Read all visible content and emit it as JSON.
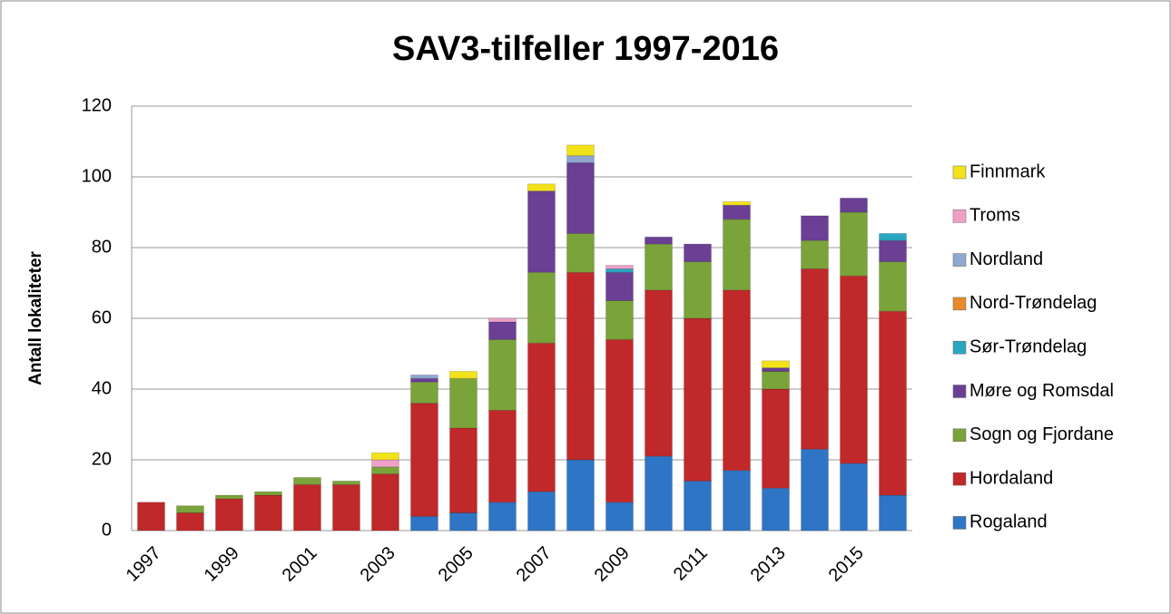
{
  "chart_data": {
    "type": "bar",
    "stacked": true,
    "title": "SAV3-tilfeller 1997-2016",
    "y_label": "Antall lokaliteter",
    "categories": [
      "1997",
      null,
      "1999",
      null,
      "2001",
      null,
      "2003",
      null,
      "2005",
      null,
      "2007",
      null,
      "2009",
      null,
      "2011",
      null,
      "2013",
      null,
      "2015",
      null
    ],
    "series": [
      {
        "name": "Rogaland",
        "color": "#2e75c6",
        "values": [
          0,
          0,
          0,
          0,
          0,
          0,
          0,
          4,
          5,
          8,
          11,
          20,
          8,
          21,
          14,
          17,
          12,
          23,
          19,
          10
        ]
      },
      {
        "name": "Hordaland",
        "color": "#c0282a",
        "values": [
          8,
          5,
          9,
          10,
          13,
          13,
          16,
          32,
          24,
          26,
          42,
          53,
          46,
          47,
          46,
          51,
          28,
          51,
          53,
          52
        ]
      },
      {
        "name": "Sogn og Fjordane",
        "color": "#7aa33a",
        "values": [
          0,
          2,
          1,
          1,
          2,
          1,
          2,
          6,
          14,
          20,
          20,
          11,
          11,
          13,
          16,
          20,
          5,
          8,
          18,
          14
        ]
      },
      {
        "name": "Møre og Romsdal",
        "color": "#6a3f94",
        "values": [
          0,
          0,
          0,
          0,
          0,
          0,
          0,
          1,
          0,
          5,
          23,
          20,
          8,
          2,
          5,
          4,
          1,
          7,
          4,
          6
        ]
      },
      {
        "name": "Sør-Trøndelag",
        "color": "#2aa6c0",
        "values": [
          0,
          0,
          0,
          0,
          0,
          0,
          0,
          0,
          0,
          0,
          0,
          0,
          1,
          0,
          0,
          0,
          0,
          0,
          0,
          2
        ]
      },
      {
        "name": "Nord-Trøndelag",
        "color": "#e88a2a",
        "values": [
          0,
          0,
          0,
          0,
          0,
          0,
          0,
          0,
          0,
          0,
          0,
          0,
          0,
          0,
          0,
          0,
          0,
          0,
          0,
          0
        ]
      },
      {
        "name": "Nordland",
        "color": "#8fa8d0",
        "values": [
          0,
          0,
          0,
          0,
          0,
          0,
          0,
          1,
          0,
          0,
          0,
          2,
          0,
          0,
          0,
          0,
          0,
          0,
          0,
          0
        ]
      },
      {
        "name": "Troms",
        "color": "#f0a0c8",
        "values": [
          0,
          0,
          0,
          0,
          0,
          0,
          2,
          0,
          0,
          1,
          0,
          0,
          1,
          0,
          0,
          0,
          0,
          0,
          0,
          0
        ]
      },
      {
        "name": "Finnmark",
        "color": "#f2e21a",
        "values": [
          0,
          0,
          0,
          0,
          0,
          0,
          2,
          0,
          2,
          0,
          2,
          3,
          0,
          0,
          0,
          1,
          2,
          0,
          0,
          0
        ]
      }
    ],
    "ylim": [
      0,
      120
    ],
    "yticks": [
      0,
      20,
      40,
      60,
      80,
      100,
      120
    ],
    "grid": true,
    "legend": "right"
  }
}
